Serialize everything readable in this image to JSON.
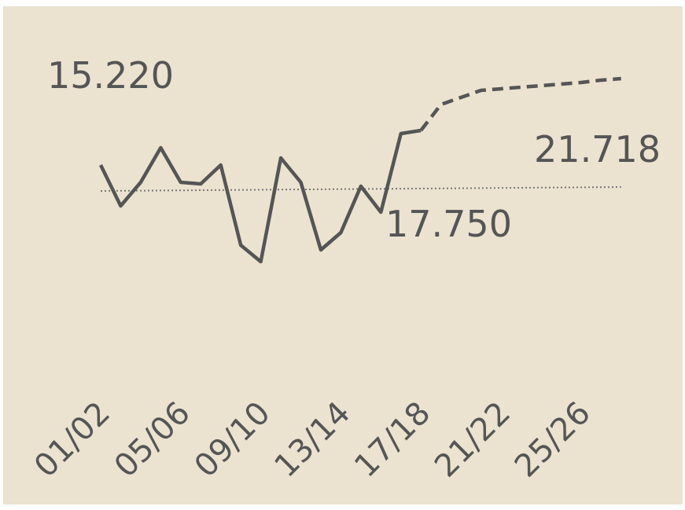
{
  "chart_data": {
    "type": "line",
    "categories": [
      "01/02",
      null,
      null,
      null,
      "05/06",
      null,
      null,
      null,
      "09/10",
      null,
      null,
      null,
      "13/14",
      null,
      null,
      null,
      "17/18",
      null,
      null,
      null,
      "21/22",
      null,
      null,
      null,
      "25/26",
      null,
      null
    ],
    "series": [
      {
        "color": "#555555",
        "style": "solid",
        "values": [
          23.5,
          20.9,
          22.4,
          24.6,
          22.4,
          22.3,
          23.5,
          18.4,
          17.35,
          23.95,
          22.4,
          18.1,
          19.2,
          22.15,
          20.5,
          25.5,
          25.7,
          null,
          null,
          null,
          null,
          null,
          null,
          null,
          null,
          null,
          null
        ]
      },
      {
        "color": "#555555",
        "style": "dashed",
        "values": [
          null,
          null,
          null,
          null,
          null,
          null,
          null,
          null,
          null,
          null,
          null,
          null,
          null,
          null,
          null,
          null,
          25.7,
          27.35,
          27.8,
          28.25,
          28.35,
          28.45,
          28.55,
          28.65,
          28.75,
          28.9,
          29.0
        ]
      }
    ],
    "trend": {
      "color": "#777777",
      "values": [
        21.85,
        22.1
      ]
    },
    "annotations": [
      "15.220",
      "21.718",
      "17.750"
    ],
    "ylim": [
      10,
      30
    ]
  }
}
